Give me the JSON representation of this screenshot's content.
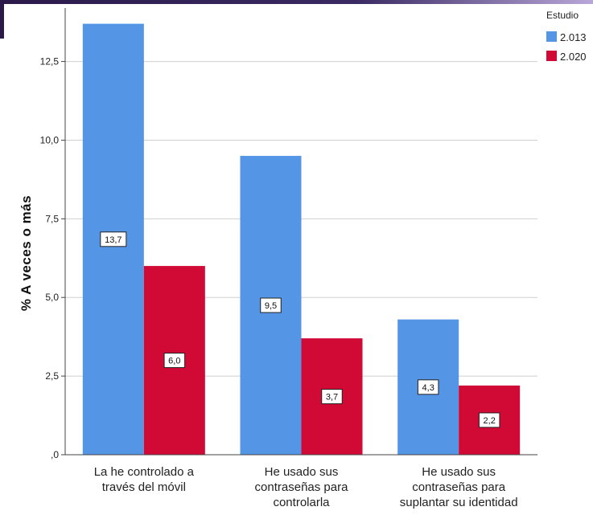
{
  "chart_data": {
    "type": "bar",
    "ylabel": "% A veces o más",
    "y_ticks": [
      ",0",
      "2,5",
      "5,0",
      "7,5",
      "10,0",
      "12,5"
    ],
    "ylim": [
      0,
      14.2
    ],
    "categories": [
      [
        "La he controlado a",
        "través del móvil"
      ],
      [
        "He usado sus",
        "contraseñas para",
        "controlarla"
      ],
      [
        "He usado sus",
        "contraseñas para",
        "suplantar su identidad"
      ]
    ],
    "legend": {
      "title": "Estudio",
      "position": "top-right"
    },
    "series": [
      {
        "name": "2.013",
        "color": "#5595e5",
        "values": [
          13.7,
          9.5,
          4.3
        ],
        "labels": [
          "13,7",
          "9,5",
          "4,3"
        ]
      },
      {
        "name": "2.020",
        "color": "#d00a35",
        "values": [
          6.0,
          3.7,
          2.2
        ],
        "labels": [
          "6,0",
          "3,7",
          "2,2"
        ]
      }
    ],
    "grid": true
  }
}
